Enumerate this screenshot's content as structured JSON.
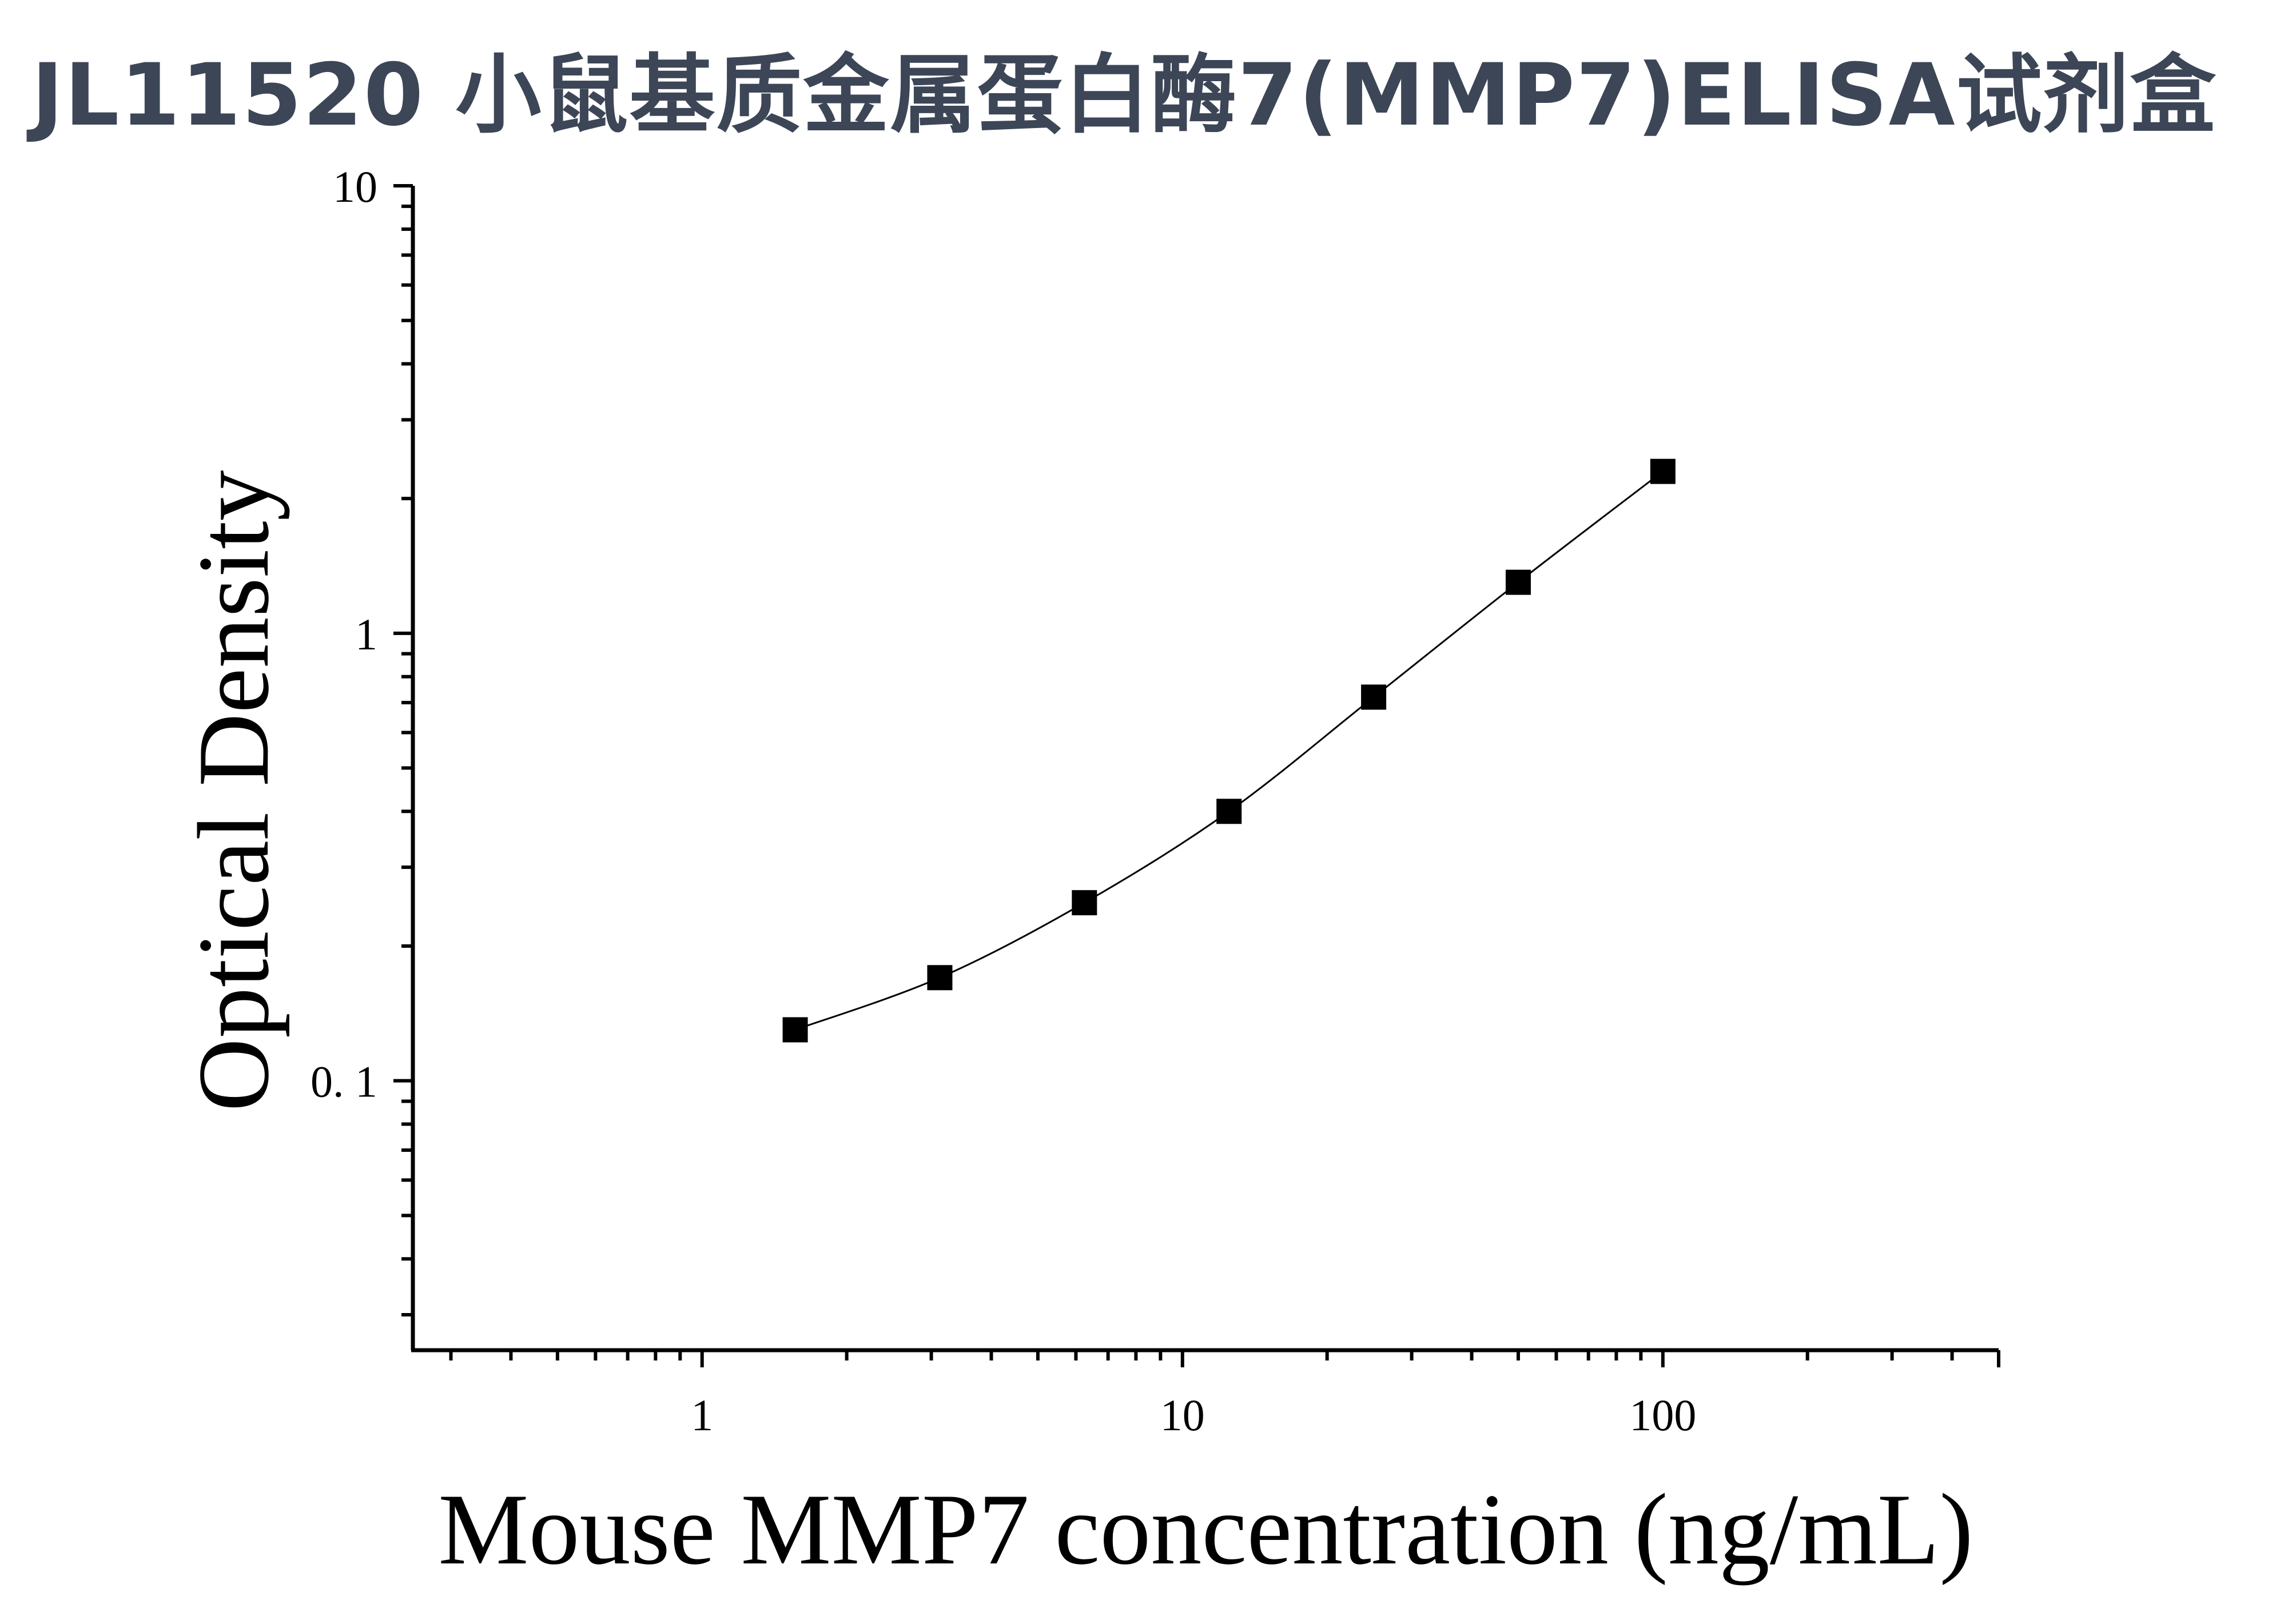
{
  "title": "JL11520 小鼠基质金属蛋白酶7(MMP7)ELISA试剂盒",
  "chart_data": {
    "type": "scatter",
    "title": "",
    "xlabel": "Mouse MMP7 concentration (ng/mL)",
    "ylabel": "Optical Density",
    "x_scale": "log",
    "y_scale": "log",
    "xlim": [
      0.25,
      500
    ],
    "ylim": [
      0.025,
      10
    ],
    "x_ticks": [
      {
        "value": 1,
        "label": "1"
      },
      {
        "value": 10,
        "label": "10"
      },
      {
        "value": 100,
        "label": "100"
      }
    ],
    "y_ticks": [
      {
        "value": 0.1,
        "label": "0. 1"
      },
      {
        "value": 1,
        "label": "1"
      },
      {
        "value": 10,
        "label": "10"
      }
    ],
    "grid": false,
    "fit_curve": true,
    "marker_color": "#000000",
    "series": [
      {
        "x": [
          1.5625,
          3.125,
          6.25,
          12.5,
          25,
          50,
          100
        ],
        "y": [
          0.13,
          0.17,
          0.25,
          0.4,
          0.72,
          1.3,
          2.3
        ]
      }
    ]
  }
}
